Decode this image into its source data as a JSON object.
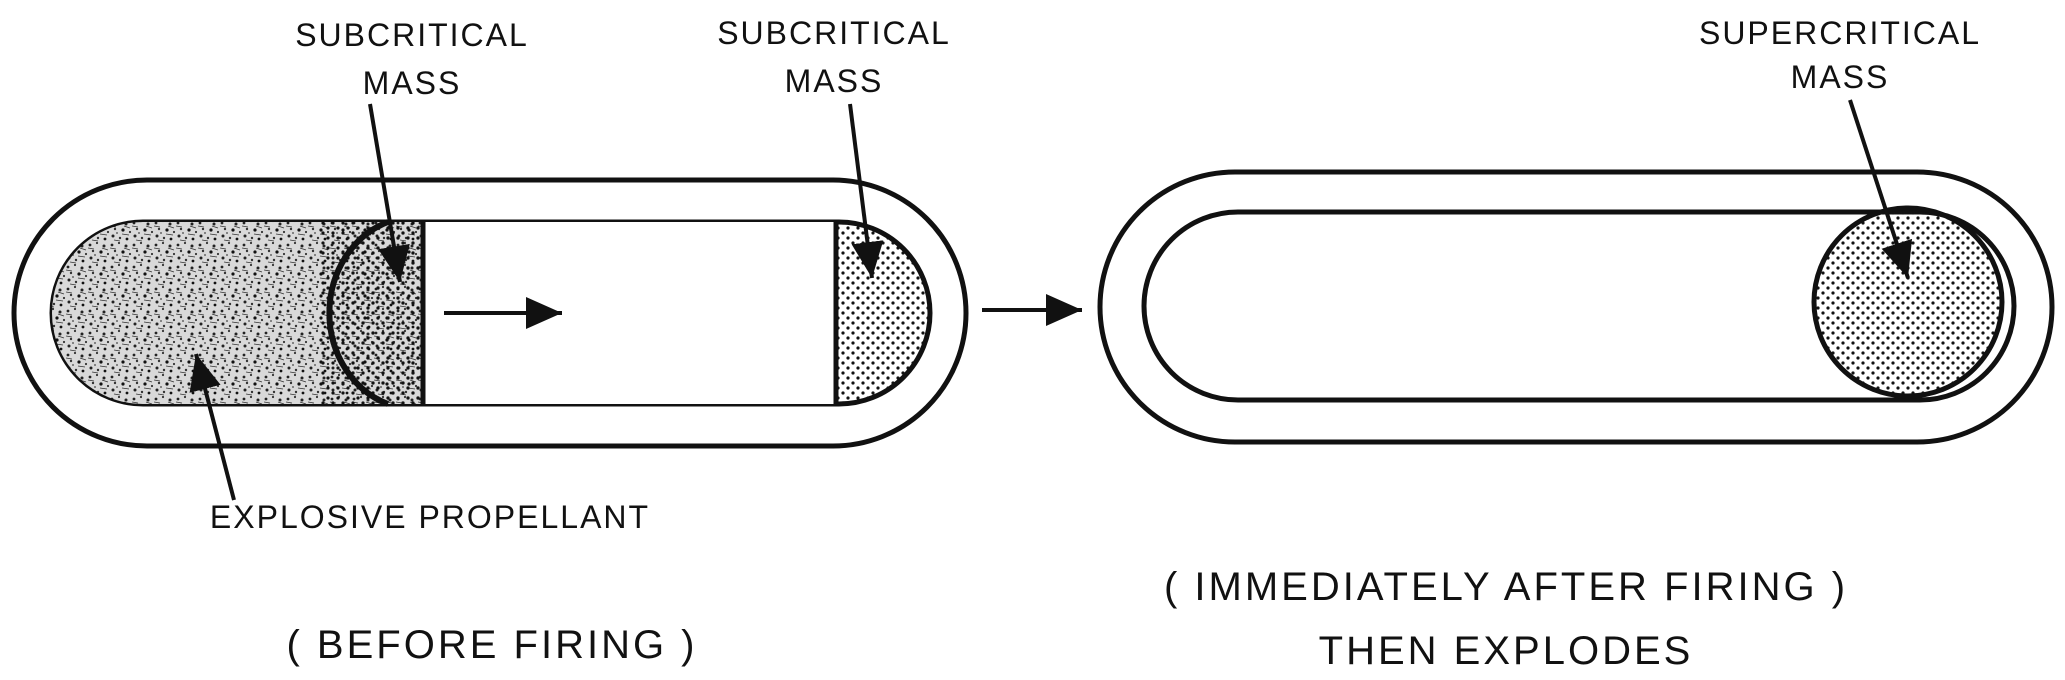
{
  "before": {
    "subcritical_mass_left": [
      "SUBCRITICAL",
      "MASS"
    ],
    "subcritical_mass_right": [
      "SUBCRITICAL",
      "MASS"
    ],
    "propellant_label": "EXPLOSIVE PROPELLANT",
    "caption": "( BEFORE FIRING )"
  },
  "after": {
    "supercritical_mass": [
      "SUPERCRITICAL",
      "MASS"
    ],
    "caption_lines": [
      "( IMMEDIATELY AFTER FIRING )",
      "THEN EXPLODES"
    ]
  }
}
